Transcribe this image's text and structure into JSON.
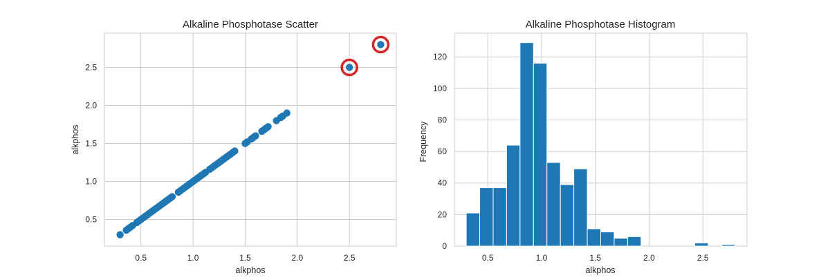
{
  "chart_data": [
    {
      "type": "scatter",
      "title": "Alkaline Phosphotase Scatter",
      "xlabel": "alkphos",
      "ylabel": "alkphos",
      "xlim": [
        0.15,
        2.95
      ],
      "ylim": [
        0.15,
        2.95
      ],
      "xticks": [
        0.5,
        1.0,
        1.5,
        2.0,
        2.5
      ],
      "yticks": [
        0.5,
        1.0,
        1.5,
        2.0,
        2.5
      ],
      "xtick_labels": [
        "0.5",
        "1.0",
        "1.5",
        "2.0",
        "2.5"
      ],
      "ytick_labels": [
        "0.5",
        "1.0",
        "1.5",
        "2.0",
        "2.5"
      ],
      "grid": true,
      "color": "#1f77b4",
      "highlight_color": "#d62728",
      "x": [
        0.3,
        0.36,
        0.38,
        0.4,
        0.42,
        0.46,
        0.48,
        0.5,
        0.52,
        0.54,
        0.56,
        0.58,
        0.6,
        0.62,
        0.64,
        0.66,
        0.68,
        0.7,
        0.72,
        0.74,
        0.76,
        0.78,
        0.8,
        0.86,
        0.88,
        0.9,
        0.92,
        0.94,
        0.96,
        0.98,
        1.0,
        1.02,
        1.04,
        1.06,
        1.08,
        1.1,
        1.12,
        1.16,
        1.18,
        1.2,
        1.22,
        1.24,
        1.26,
        1.28,
        1.3,
        1.32,
        1.34,
        1.36,
        1.38,
        1.4,
        1.5,
        1.52,
        1.56,
        1.58,
        1.6,
        1.66,
        1.68,
        1.7,
        1.72,
        1.8,
        1.84,
        1.86,
        1.9,
        2.5,
        2.8
      ],
      "y": [
        0.3,
        0.36,
        0.38,
        0.4,
        0.42,
        0.46,
        0.48,
        0.5,
        0.52,
        0.54,
        0.56,
        0.58,
        0.6,
        0.62,
        0.64,
        0.66,
        0.68,
        0.7,
        0.72,
        0.74,
        0.76,
        0.78,
        0.8,
        0.86,
        0.88,
        0.9,
        0.92,
        0.94,
        0.96,
        0.98,
        1.0,
        1.02,
        1.04,
        1.06,
        1.08,
        1.1,
        1.12,
        1.16,
        1.18,
        1.2,
        1.22,
        1.24,
        1.26,
        1.28,
        1.3,
        1.32,
        1.34,
        1.36,
        1.38,
        1.4,
        1.5,
        1.52,
        1.56,
        1.58,
        1.6,
        1.66,
        1.68,
        1.7,
        1.72,
        1.8,
        1.84,
        1.86,
        1.9,
        2.5,
        2.8
      ],
      "highlighted_points": [
        {
          "x": 2.5,
          "y": 2.5
        },
        {
          "x": 2.8,
          "y": 2.8
        }
      ]
    },
    {
      "type": "bar",
      "title": "Alkaline Phosphotase Histogram",
      "xlabel": "alkphos",
      "ylabel": "Frequency",
      "xlim": [
        0.19,
        2.91
      ],
      "ylim": [
        0,
        135
      ],
      "xticks": [
        0.5,
        1.0,
        1.5,
        2.0,
        2.5
      ],
      "yticks": [
        0,
        20,
        40,
        60,
        80,
        100,
        120
      ],
      "xtick_labels": [
        "0.5",
        "1.0",
        "1.5",
        "2.0",
        "2.5"
      ],
      "ytick_labels": [
        "0",
        "20",
        "40",
        "60",
        "80",
        "100",
        "120"
      ],
      "grid": true,
      "color": "#1f77b4",
      "bin_edges": [
        0.3,
        0.425,
        0.55,
        0.675,
        0.8,
        0.925,
        1.05,
        1.175,
        1.3,
        1.425,
        1.55,
        1.675,
        1.8,
        1.925,
        2.05,
        2.175,
        2.3,
        2.425,
        2.55,
        2.675,
        2.8
      ],
      "values": [
        21,
        37,
        37,
        64,
        129,
        116,
        53,
        39,
        49,
        11,
        9,
        5,
        6,
        0,
        0,
        0,
        0,
        2,
        0,
        1
      ]
    }
  ]
}
